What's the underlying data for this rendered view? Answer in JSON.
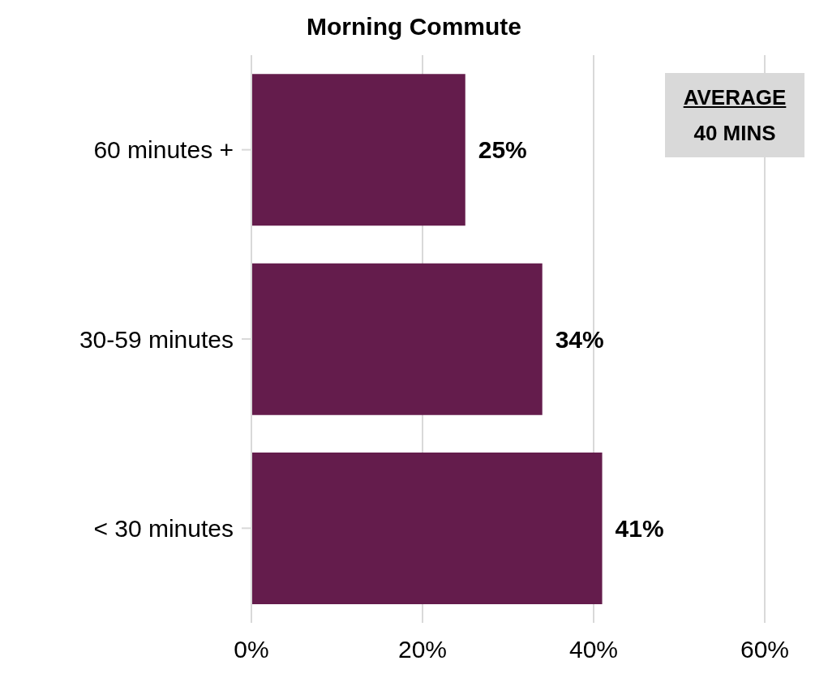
{
  "chart_data": {
    "type": "bar",
    "orientation": "horizontal",
    "title": "Morning Commute",
    "categories": [
      "60 minutes +",
      "30-59 minutes",
      "< 30 minutes"
    ],
    "values": [
      25,
      34,
      41
    ],
    "color": "#641c4c",
    "value_labels": [
      "25%",
      "34%",
      "41%"
    ],
    "xlim": [
      0,
      60
    ],
    "xticks": [
      {
        "value": 0,
        "label": "0%"
      },
      {
        "value": 20,
        "label": "20%"
      },
      {
        "value": 40,
        "label": "40%"
      },
      {
        "value": 60,
        "label": "60%"
      }
    ],
    "grid": "x",
    "annotations": [
      "AVERAGE",
      "40 MINS"
    ]
  }
}
